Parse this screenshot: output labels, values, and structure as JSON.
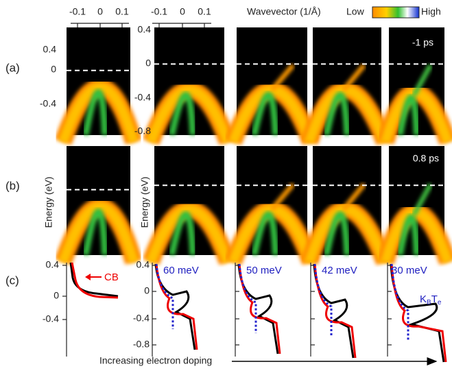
{
  "colorbar": {
    "title": "Wavevector (1/Å)",
    "low": "Low",
    "high": "High"
  },
  "rows": [
    {
      "label": "(a)",
      "time": "-1 ps"
    },
    {
      "label": "(b)",
      "time": "0.8 ps"
    },
    {
      "label": "(c)"
    }
  ],
  "y_axis_label": "Energy (eV)",
  "k_ticks": [
    "-0.1",
    "0",
    "0.1"
  ],
  "energy_ticks_first": [
    "0.4",
    "0",
    "-0.4"
  ],
  "energy_ticks": [
    "0.4",
    "0",
    "-0.4",
    "-0.8"
  ],
  "cb_label": "CB",
  "temperatures": [
    "60 meV",
    "50 meV",
    "42 meV",
    "30 meV"
  ],
  "kbte": [
    "K",
    "B",
    "T",
    "e"
  ],
  "footer": "Increasing electron doping"
}
